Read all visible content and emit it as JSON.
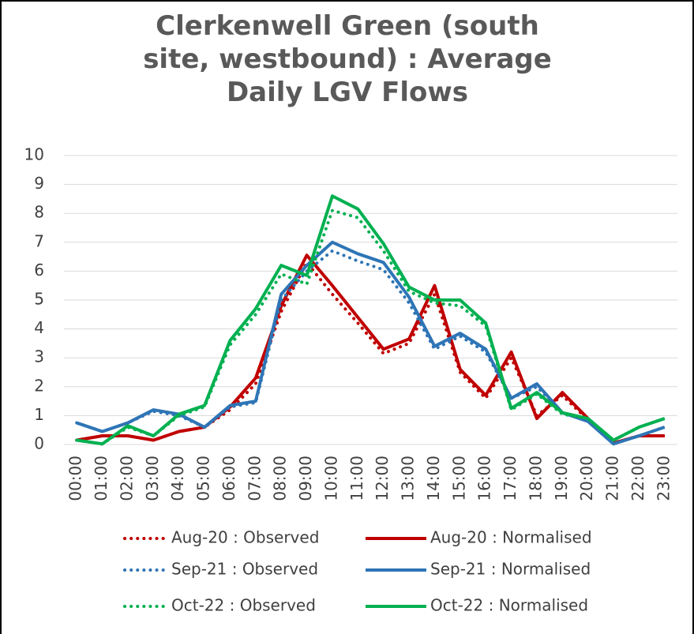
{
  "chart_data": {
    "type": "line",
    "title": "Clerkenwell Green (south site, westbound) : Average Daily LGV Flows",
    "categories": [
      "00:00",
      "01:00",
      "02:00",
      "03:00",
      "04:00",
      "05:00",
      "06:00",
      "07:00",
      "08:00",
      "09:00",
      "10:00",
      "11:00",
      "12:00",
      "13:00",
      "14:00",
      "15:00",
      "16:00",
      "17:00",
      "18:00",
      "19:00",
      "20:00",
      "21:00",
      "22:00",
      "23:00"
    ],
    "ylim": [
      0,
      10
    ],
    "yticks": [
      0,
      1,
      2,
      3,
      4,
      5,
      6,
      7,
      8,
      9,
      10
    ],
    "grid": true,
    "series": [
      {
        "name": "Aug-20 : Observed",
        "color": "#c00000",
        "style": "dotted",
        "values": [
          0.15,
          0.3,
          0.3,
          0.15,
          0.45,
          0.6,
          1.2,
          2.1,
          4.6,
          6.3,
          5.2,
          4.2,
          3.15,
          3.5,
          5.2,
          2.5,
          1.6,
          3.0,
          1.0,
          1.7,
          0.85,
          0.05,
          0.3,
          0.3
        ]
      },
      {
        "name": "Aug-20 : Normalised",
        "color": "#c00000",
        "style": "solid",
        "values": [
          0.15,
          0.3,
          0.3,
          0.15,
          0.45,
          0.6,
          1.3,
          2.3,
          4.8,
          6.55,
          5.5,
          4.4,
          3.3,
          3.65,
          5.5,
          2.6,
          1.7,
          3.2,
          0.9,
          1.8,
          0.9,
          0.05,
          0.3,
          0.3
        ]
      },
      {
        "name": "Sep-21 : Observed",
        "color": "#2e75b6",
        "style": "dotted",
        "values": [
          0.75,
          0.45,
          0.75,
          1.15,
          1.0,
          0.6,
          1.3,
          1.45,
          5.0,
          6.0,
          6.7,
          6.35,
          6.05,
          4.9,
          3.3,
          3.75,
          3.2,
          1.6,
          2.0,
          1.1,
          0.8,
          0.02,
          0.3,
          0.6
        ]
      },
      {
        "name": "Sep-21 : Normalised",
        "color": "#2e75b6",
        "style": "solid",
        "values": [
          0.75,
          0.45,
          0.75,
          1.2,
          1.05,
          0.6,
          1.35,
          1.5,
          5.2,
          6.2,
          7.0,
          6.6,
          6.3,
          5.1,
          3.4,
          3.85,
          3.3,
          1.6,
          2.1,
          1.1,
          0.8,
          0.02,
          0.3,
          0.6
        ]
      },
      {
        "name": "Oct-22 : Observed",
        "color": "#00b050",
        "style": "dotted",
        "values": [
          0.15,
          0.02,
          0.6,
          0.3,
          1.0,
          1.3,
          3.45,
          4.5,
          5.9,
          5.55,
          8.1,
          7.85,
          6.7,
          5.3,
          4.9,
          4.8,
          4.1,
          1.2,
          1.75,
          1.05,
          0.9,
          0.15,
          0.6,
          0.9
        ]
      },
      {
        "name": "Oct-22 : Normalised",
        "color": "#00b050",
        "style": "solid",
        "values": [
          0.15,
          0.02,
          0.65,
          0.3,
          1.05,
          1.35,
          3.6,
          4.7,
          6.2,
          5.85,
          8.6,
          8.15,
          6.95,
          5.45,
          5.0,
          5.0,
          4.2,
          1.25,
          1.8,
          1.1,
          0.9,
          0.15,
          0.6,
          0.9
        ]
      }
    ]
  }
}
